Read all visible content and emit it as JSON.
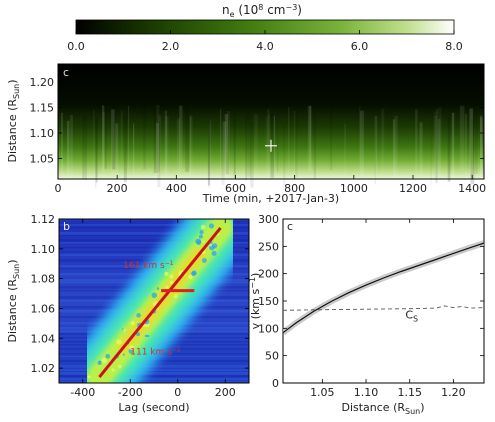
{
  "colorbar": {
    "title": "n",
    "title_sub": "e",
    "unit_open": " (10",
    "unit_sup": "8",
    "unit_close": " cm",
    "unit_sup2": "−3",
    "unit_end": ")",
    "ticks": [
      "0.0",
      "2.0",
      "4.0",
      "6.0",
      "8.0"
    ],
    "range": [
      0,
      8
    ],
    "colors": [
      "#000000",
      "#1a3a00",
      "#3f7a10",
      "#79b33a",
      "#c2e08f",
      "#ffffff"
    ]
  },
  "chart_data": [
    {
      "panel_label": "c",
      "type": "heatmap",
      "xlabel": "Time (min, +2017-Jan-3)",
      "ylabel": "Distance (R",
      "ylabel_sub": "Sun",
      "ylabel_end": ")",
      "xlim": [
        0,
        1440
      ],
      "ylim": [
        1.01,
        1.235
      ],
      "xticks": [
        "0",
        "200",
        "400",
        "600",
        "800",
        "1000",
        "1200",
        "1400"
      ],
      "yticks": [
        "1.05",
        "1.10",
        "1.15",
        "1.20"
      ],
      "marker": {
        "x": 720,
        "y": 1.075
      },
      "description_values": "density (10^8 cm^-3) decreasing with distance: ~8 at 1.01, ~4 at 1.05, ~1.5 at 1.10, ~0.3 at 1.20"
    },
    {
      "panel_label": "b",
      "type": "heatmap",
      "xlabel": "Lag (second)",
      "ylabel": "Distance (R",
      "ylabel_sub": "Sun",
      "ylabel_end": ")",
      "xlim": [
        -500,
        300
      ],
      "ylim": [
        1.01,
        1.12
      ],
      "xticks": [
        "-400",
        "-200",
        "0",
        "200"
      ],
      "yticks": [
        "1.02",
        "1.04",
        "1.06",
        "1.08",
        "1.10",
        "1.12"
      ],
      "fit_line": {
        "x": [
          -330,
          180
        ],
        "y": [
          1.014,
          1.114
        ]
      },
      "horizontal_marker": {
        "x": [
          -70,
          70
        ],
        "y": 1.072
      },
      "annotations": [
        {
          "text": "161 km s",
          "sup": "−1",
          "x": -230,
          "y": 1.087
        },
        {
          "text": "111 km s",
          "sup": "−1",
          "x": -200,
          "y": 1.029
        }
      ]
    },
    {
      "panel_label": "c",
      "type": "line",
      "xlabel": "Distance (R",
      "xlabel_sub": "Sun",
      "xlabel_end": ")",
      "ylabel": "v (km s",
      "ylabel_sup": "−1",
      "ylabel_end": ")",
      "xlim": [
        1.005,
        1.235
      ],
      "ylim": [
        0,
        300
      ],
      "xticks": [
        "1.05",
        "1.10",
        "1.15",
        "1.20"
      ],
      "yticks": [
        "0",
        "50",
        "100",
        "150",
        "200",
        "250",
        "300"
      ],
      "series": [
        {
          "name": "",
          "style": "solid",
          "x": [
            1.005,
            1.02,
            1.04,
            1.06,
            1.08,
            1.1,
            1.12,
            1.14,
            1.16,
            1.18,
            1.2,
            1.22,
            1.235
          ],
          "y": [
            92,
            110,
            131,
            149,
            165,
            179,
            192,
            204,
            215,
            226,
            237,
            248,
            256
          ]
        },
        {
          "name": "C",
          "name_sub": "S",
          "style": "dashed",
          "x": [
            1.005,
            1.05,
            1.1,
            1.15,
            1.18,
            1.19,
            1.2,
            1.21,
            1.22,
            1.235
          ],
          "y": [
            133,
            134,
            135,
            136,
            137,
            141,
            138,
            140,
            137,
            138
          ]
        }
      ],
      "label_cs_position": {
        "x": 1.145,
        "y": 118
      }
    }
  ]
}
